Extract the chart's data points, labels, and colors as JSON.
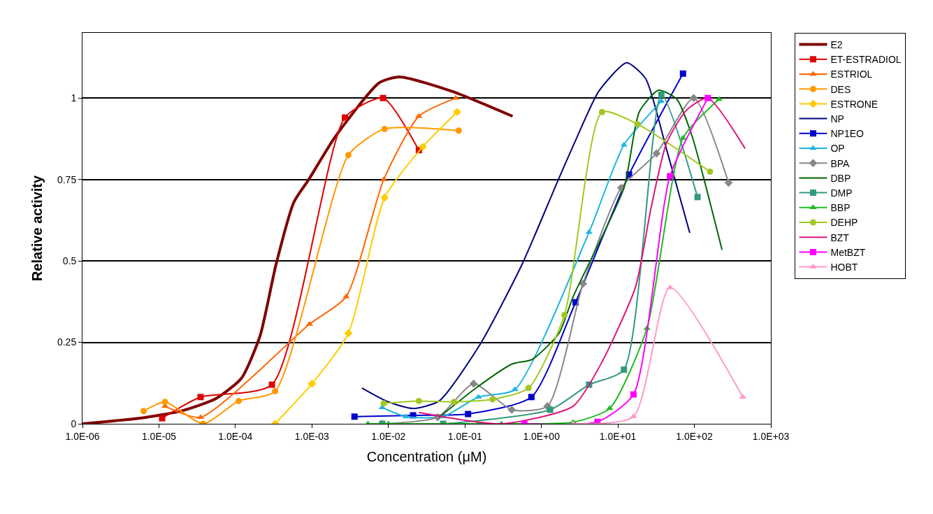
{
  "chart_data": {
    "type": "line",
    "xlabel": "Concentration (μM)",
    "ylabel": "Relative activity",
    "log": "x",
    "xlim": [
      1e-06,
      1000
    ],
    "xticks": [
      {
        "value": 1e-06,
        "label": "1.0E-06"
      },
      {
        "value": 1e-05,
        "label": "1.0E-05"
      },
      {
        "value": 0.0001,
        "label": "1.0E-04"
      },
      {
        "value": 0.001,
        "label": "1.0E-03"
      },
      {
        "value": 0.01,
        "label": "1.0E-02"
      },
      {
        "value": 0.1,
        "label": "1.0E-01"
      },
      {
        "value": 1,
        "label": "1.0E+00"
      },
      {
        "value": 10,
        "label": "1.0E+01"
      },
      {
        "value": 100,
        "label": "1.0E+02"
      },
      {
        "value": 1000,
        "label": "1.0E+03"
      }
    ],
    "ylim": [
      0,
      1.2
    ],
    "yticks": [
      0,
      0.25,
      0.5,
      0.75,
      1
    ],
    "grid": "y",
    "legend": "right",
    "series": [
      {
        "name": "E2",
        "color": "#800000",
        "marker": "none",
        "x": [
          1e-06,
          5.6e-06,
          2e-05,
          5.6e-05,
          0.00012,
          0.00021,
          0.00034,
          0.00058,
          0.00091,
          0.002,
          0.0076,
          0.014,
          0.069,
          0.42
        ],
        "values": [
          0,
          0.017,
          0.04,
          0.078,
          0.14,
          0.27,
          0.49,
          0.68,
          0.75,
          0.88,
          1.047,
          1.065,
          1.02,
          0.944
        ]
      },
      {
        "name": "ET-ESTRADIOL",
        "color": "#dd0000",
        "marker": "square",
        "x": [
          1.1e-05,
          3.5e-05,
          0.0003,
          0.0027,
          0.0085,
          0.025
        ],
        "values": [
          0.017,
          0.082,
          0.12,
          0.94,
          1.0,
          0.84
        ]
      },
      {
        "name": "ESTRIOL",
        "color": "#ff6600",
        "marker": "triangle",
        "x": [
          1.2e-05,
          3.5e-05,
          0.00093,
          0.0028,
          0.0087,
          0.025,
          0.076
        ],
        "values": [
          0.054,
          0.02,
          0.306,
          0.39,
          0.75,
          0.944,
          1.0
        ]
      },
      {
        "name": "DES",
        "color": "#ff9900",
        "marker": "circle",
        "x": [
          6.3e-06,
          1.2e-05,
          3.8e-05,
          0.00011,
          0.00033,
          0.003,
          0.0089,
          0.083
        ],
        "values": [
          0.039,
          0.067,
          0.0,
          0.07,
          0.1,
          0.825,
          0.905,
          0.9
        ]
      },
      {
        "name": "ESTRONE",
        "color": "#ffcc00",
        "marker": "diamond",
        "x": [
          0.00033,
          0.001,
          0.003,
          0.0089,
          0.028,
          0.079
        ],
        "values": [
          0,
          0.123,
          0.278,
          0.694,
          0.85,
          0.957
        ]
      },
      {
        "name": "NP",
        "color": "#000080",
        "marker": "none",
        "x": [
          0.0045,
          0.01,
          0.021,
          0.046,
          0.16,
          0.56,
          1.6,
          2.8,
          5.6,
          13,
          23,
          43,
          87
        ],
        "values": [
          0.11,
          0.067,
          0.047,
          0.07,
          0.246,
          0.49,
          0.74,
          0.87,
          1.02,
          1.108,
          1.06,
          0.845,
          0.586
        ]
      },
      {
        "name": "NP1EO",
        "color": "#0000cc",
        "marker": "square",
        "x": [
          0.0036,
          0.021,
          0.11,
          0.74,
          2.8,
          14,
          71
        ],
        "values": [
          0.022,
          0.026,
          0.03,
          0.082,
          0.373,
          0.765,
          1.075
        ]
      },
      {
        "name": "OP",
        "color": "#1fb5e0",
        "marker": "triangle",
        "x": [
          0.0083,
          0.017,
          0.052,
          0.15,
          0.45,
          4.2,
          12,
          37
        ],
        "values": [
          0.05,
          0.022,
          0.022,
          0.082,
          0.105,
          0.588,
          0.856,
          0.99
        ]
      },
      {
        "name": "BPA",
        "color": "#888888",
        "marker": "diamond",
        "x": [
          0.0083,
          0.044,
          0.13,
          0.41,
          1.2,
          3.5,
          11,
          32,
          98,
          280
        ],
        "values": [
          0,
          0.02,
          0.123,
          0.043,
          0.054,
          0.43,
          0.724,
          0.83,
          1.0,
          0.74
        ]
      },
      {
        "name": "DBP",
        "color": "#006600",
        "marker": "none",
        "x": [
          0.046,
          0.14,
          0.41,
          0.76,
          1.7,
          2.6,
          12,
          19,
          34,
          59,
          93,
          230
        ],
        "values": [
          0.02,
          0.11,
          0.183,
          0.198,
          0.278,
          0.39,
          0.724,
          0.957,
          1.024,
          0.996,
          0.884,
          0.534
        ]
      },
      {
        "name": "DMP",
        "color": "#339980",
        "marker": "square",
        "x": [
          0.0083,
          0.052,
          1.3,
          4.2,
          12,
          37,
          110
        ],
        "values": [
          0,
          0,
          0.043,
          0.12,
          0.166,
          1.01,
          0.696
        ]
      },
      {
        "name": "BBP",
        "color": "#22bb22",
        "marker": "triangle",
        "x": [
          0.0054,
          0.01,
          0.15,
          0.3,
          2.6,
          7.8,
          24,
          71,
          210
        ],
        "values": [
          0,
          0,
          0,
          0,
          0.005,
          0.047,
          0.293,
          0.877,
          0.996
        ]
      },
      {
        "name": "DEHP",
        "color": "#a0c820",
        "marker": "circle",
        "x": [
          0.0087,
          0.025,
          0.072,
          0.23,
          0.68,
          2.0,
          6.2,
          18,
          160
        ],
        "values": [
          0.063,
          0.07,
          0.067,
          0.075,
          0.11,
          0.334,
          0.957,
          0.92,
          0.774
        ]
      },
      {
        "name": "BZT",
        "color": "#e0147a",
        "marker": "none",
        "x": [
          0.025,
          0.3,
          2.6,
          6.2,
          17,
          27,
          43,
          79,
          150,
          460
        ],
        "values": [
          0.035,
          0,
          0.054,
          0.19,
          0.42,
          0.66,
          0.86,
          0.963,
          1.0,
          0.845
        ]
      },
      {
        "name": "MetBZT",
        "color": "#ff00ff",
        "marker": "square",
        "x": [
          0.6,
          5.4,
          16,
          48,
          150
        ],
        "values": [
          0,
          0.006,
          0.09,
          0.76,
          1.0
        ]
      },
      {
        "name": "HOBT",
        "color": "#ff99cc",
        "marker": "triangle",
        "x": [
          2.6,
          16,
          48,
          430
        ],
        "values": [
          0,
          0.022,
          0.418,
          0.082
        ]
      }
    ]
  }
}
